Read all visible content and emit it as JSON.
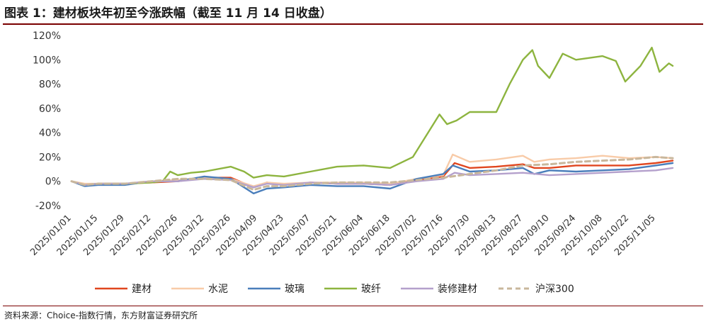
{
  "header": {
    "title": "图表 1：建材板块年初至今涨跌幅（截至 11 月 14 日收盘）"
  },
  "footer": {
    "source": "资料来源：Choice-指数行情，东方财富证券研究所"
  },
  "chart_data": {
    "type": "line",
    "ylim": [
      -20,
      120
    ],
    "yticks": [
      -20,
      0,
      20,
      40,
      60,
      80,
      100,
      120
    ],
    "ytick_labels": [
      "-20%",
      "0%",
      "20%",
      "40%",
      "60%",
      "80%",
      "100%",
      "120%"
    ],
    "x_start": "2025/01/01",
    "x_end": "2025/11/14",
    "xtick_labels": [
      "2025/01/01",
      "2025/01/15",
      "2025/01/29",
      "2025/02/12",
      "2025/02/26",
      "2025/03/12",
      "2025/03/26",
      "2025/04/09",
      "2025/04/23",
      "2025/05/07",
      "2025/05/21",
      "2025/06/04",
      "2025/06/18",
      "2025/07/02",
      "2025/07/16",
      "2025/07/30",
      "2025/08/13",
      "2025/08/27",
      "2025/09/10",
      "2025/09/24",
      "2025/10/08",
      "2025/10/22",
      "2025/11/05"
    ],
    "legend_position": "bottom",
    "series": [
      {
        "name": "建材",
        "color": "#e0461f",
        "dash": false,
        "points": [
          [
            "2025/01/01",
            0
          ],
          [
            "2025/01/08",
            -3
          ],
          [
            "2025/01/15",
            -2
          ],
          [
            "2025/01/29",
            -2
          ],
          [
            "2025/02/12",
            -1
          ],
          [
            "2025/02/26",
            0
          ],
          [
            "2025/03/12",
            3
          ],
          [
            "2025/03/26",
            3
          ],
          [
            "2025/04/07",
            -5
          ],
          [
            "2025/04/14",
            -1
          ],
          [
            "2025/04/23",
            -3
          ],
          [
            "2025/05/07",
            -1
          ],
          [
            "2025/05/21",
            -2
          ],
          [
            "2025/06/04",
            -2
          ],
          [
            "2025/06/18",
            -3
          ],
          [
            "2025/07/02",
            1
          ],
          [
            "2025/07/16",
            4
          ],
          [
            "2025/07/22",
            15
          ],
          [
            "2025/07/30",
            11
          ],
          [
            "2025/08/13",
            12
          ],
          [
            "2025/08/27",
            14
          ],
          [
            "2025/09/02",
            11
          ],
          [
            "2025/09/10",
            11
          ],
          [
            "2025/09/24",
            13
          ],
          [
            "2025/10/08",
            13
          ],
          [
            "2025/10/22",
            13
          ],
          [
            "2025/11/05",
            15
          ],
          [
            "2025/11/14",
            17
          ]
        ]
      },
      {
        "name": "水泥",
        "color": "#f8cba8",
        "dash": false,
        "points": [
          [
            "2025/01/01",
            0
          ],
          [
            "2025/01/08",
            -2
          ],
          [
            "2025/01/15",
            -2
          ],
          [
            "2025/01/29",
            -2
          ],
          [
            "2025/02/12",
            0
          ],
          [
            "2025/02/26",
            1
          ],
          [
            "2025/03/12",
            3
          ],
          [
            "2025/03/26",
            2
          ],
          [
            "2025/04/07",
            -4
          ],
          [
            "2025/04/14",
            -1
          ],
          [
            "2025/04/23",
            -2
          ],
          [
            "2025/05/07",
            -1
          ],
          [
            "2025/05/21",
            -1
          ],
          [
            "2025/06/04",
            -1
          ],
          [
            "2025/06/18",
            -2
          ],
          [
            "2025/07/02",
            2
          ],
          [
            "2025/07/16",
            5
          ],
          [
            "2025/07/21",
            22
          ],
          [
            "2025/07/30",
            16
          ],
          [
            "2025/08/13",
            18
          ],
          [
            "2025/08/27",
            21
          ],
          [
            "2025/09/02",
            16
          ],
          [
            "2025/09/10",
            18
          ],
          [
            "2025/09/24",
            19
          ],
          [
            "2025/10/08",
            21
          ],
          [
            "2025/10/22",
            19
          ],
          [
            "2025/11/05",
            20
          ],
          [
            "2025/11/14",
            19
          ]
        ]
      },
      {
        "name": "玻璃",
        "color": "#4a7ebb",
        "dash": false,
        "points": [
          [
            "2025/01/01",
            0
          ],
          [
            "2025/01/08",
            -4
          ],
          [
            "2025/01/15",
            -3
          ],
          [
            "2025/01/29",
            -3
          ],
          [
            "2025/02/12",
            0
          ],
          [
            "2025/02/26",
            0
          ],
          [
            "2025/03/12",
            4
          ],
          [
            "2025/03/26",
            2
          ],
          [
            "2025/04/07",
            -10
          ],
          [
            "2025/04/14",
            -6
          ],
          [
            "2025/04/23",
            -5
          ],
          [
            "2025/05/07",
            -3
          ],
          [
            "2025/05/21",
            -4
          ],
          [
            "2025/06/04",
            -4
          ],
          [
            "2025/06/18",
            -6
          ],
          [
            "2025/07/02",
            2
          ],
          [
            "2025/07/16",
            6
          ],
          [
            "2025/07/21",
            13
          ],
          [
            "2025/07/30",
            8
          ],
          [
            "2025/08/13",
            9
          ],
          [
            "2025/08/27",
            11
          ],
          [
            "2025/09/02",
            6
          ],
          [
            "2025/09/10",
            9
          ],
          [
            "2025/09/24",
            8
          ],
          [
            "2025/10/08",
            9
          ],
          [
            "2025/10/22",
            10
          ],
          [
            "2025/11/05",
            13
          ],
          [
            "2025/11/14",
            15
          ]
        ]
      },
      {
        "name": "玻纤",
        "color": "#8db43f",
        "dash": false,
        "points": [
          [
            "2025/01/01",
            0
          ],
          [
            "2025/01/08",
            -3
          ],
          [
            "2025/01/15",
            -2
          ],
          [
            "2025/01/29",
            -2
          ],
          [
            "2025/02/12",
            -1
          ],
          [
            "2025/02/18",
            0
          ],
          [
            "2025/02/22",
            8
          ],
          [
            "2025/02/26",
            5
          ],
          [
            "2025/03/05",
            7
          ],
          [
            "2025/03/12",
            8
          ],
          [
            "2025/03/26",
            12
          ],
          [
            "2025/04/02",
            8
          ],
          [
            "2025/04/07",
            3
          ],
          [
            "2025/04/14",
            5
          ],
          [
            "2025/04/23",
            4
          ],
          [
            "2025/05/07",
            8
          ],
          [
            "2025/05/21",
            12
          ],
          [
            "2025/06/04",
            13
          ],
          [
            "2025/06/18",
            11
          ],
          [
            "2025/06/30",
            20
          ],
          [
            "2025/07/02",
            25
          ],
          [
            "2025/07/08",
            40
          ],
          [
            "2025/07/14",
            55
          ],
          [
            "2025/07/18",
            47
          ],
          [
            "2025/07/23",
            50
          ],
          [
            "2025/07/30",
            57
          ],
          [
            "2025/08/13",
            57
          ],
          [
            "2025/08/20",
            80
          ],
          [
            "2025/08/27",
            100
          ],
          [
            "2025/09/01",
            108
          ],
          [
            "2025/09/04",
            95
          ],
          [
            "2025/09/10",
            85
          ],
          [
            "2025/09/17",
            105
          ],
          [
            "2025/09/24",
            100
          ],
          [
            "2025/10/08",
            103
          ],
          [
            "2025/10/15",
            99
          ],
          [
            "2025/10/20",
            82
          ],
          [
            "2025/10/28",
            95
          ],
          [
            "2025/11/03",
            110
          ],
          [
            "2025/11/07",
            90
          ],
          [
            "2025/11/12",
            97
          ],
          [
            "2025/11/14",
            95
          ]
        ]
      },
      {
        "name": "装修建材",
        "color": "#b4a0cc",
        "dash": false,
        "points": [
          [
            "2025/01/01",
            0
          ],
          [
            "2025/01/08",
            -3
          ],
          [
            "2025/01/15",
            -2
          ],
          [
            "2025/01/29",
            -2
          ],
          [
            "2025/02/12",
            0
          ],
          [
            "2025/02/26",
            0
          ],
          [
            "2025/03/12",
            2
          ],
          [
            "2025/03/26",
            1
          ],
          [
            "2025/04/07",
            -5
          ],
          [
            "2025/04/14",
            -2
          ],
          [
            "2025/04/23",
            -3
          ],
          [
            "2025/05/07",
            -1
          ],
          [
            "2025/05/21",
            -2
          ],
          [
            "2025/06/04",
            -2
          ],
          [
            "2025/06/18",
            -3
          ],
          [
            "2025/07/02",
            0
          ],
          [
            "2025/07/16",
            2
          ],
          [
            "2025/07/22",
            7
          ],
          [
            "2025/07/30",
            5
          ],
          [
            "2025/08/13",
            6
          ],
          [
            "2025/08/27",
            7
          ],
          [
            "2025/09/10",
            5
          ],
          [
            "2025/09/24",
            6
          ],
          [
            "2025/10/08",
            7
          ],
          [
            "2025/10/22",
            8
          ],
          [
            "2025/11/05",
            9
          ],
          [
            "2025/11/14",
            11
          ]
        ]
      },
      {
        "name": "沪深300",
        "color": "#c9b79c",
        "dash": true,
        "points": [
          [
            "2025/01/01",
            0
          ],
          [
            "2025/01/08",
            -3
          ],
          [
            "2025/01/15",
            -2
          ],
          [
            "2025/01/29",
            -2
          ],
          [
            "2025/02/12",
            0
          ],
          [
            "2025/02/26",
            2
          ],
          [
            "2025/03/12",
            2
          ],
          [
            "2025/03/26",
            1
          ],
          [
            "2025/04/07",
            -7
          ],
          [
            "2025/04/14",
            -4
          ],
          [
            "2025/04/23",
            -4
          ],
          [
            "2025/05/07",
            -2
          ],
          [
            "2025/05/21",
            -1
          ],
          [
            "2025/06/04",
            -1
          ],
          [
            "2025/06/18",
            -1
          ],
          [
            "2025/07/02",
            1
          ],
          [
            "2025/07/16",
            3
          ],
          [
            "2025/07/30",
            6
          ],
          [
            "2025/08/13",
            9
          ],
          [
            "2025/08/27",
            13
          ],
          [
            "2025/09/10",
            14
          ],
          [
            "2025/09/24",
            16
          ],
          [
            "2025/10/08",
            17
          ],
          [
            "2025/10/22",
            18
          ],
          [
            "2025/11/05",
            20
          ],
          [
            "2025/11/14",
            19
          ]
        ]
      }
    ]
  }
}
